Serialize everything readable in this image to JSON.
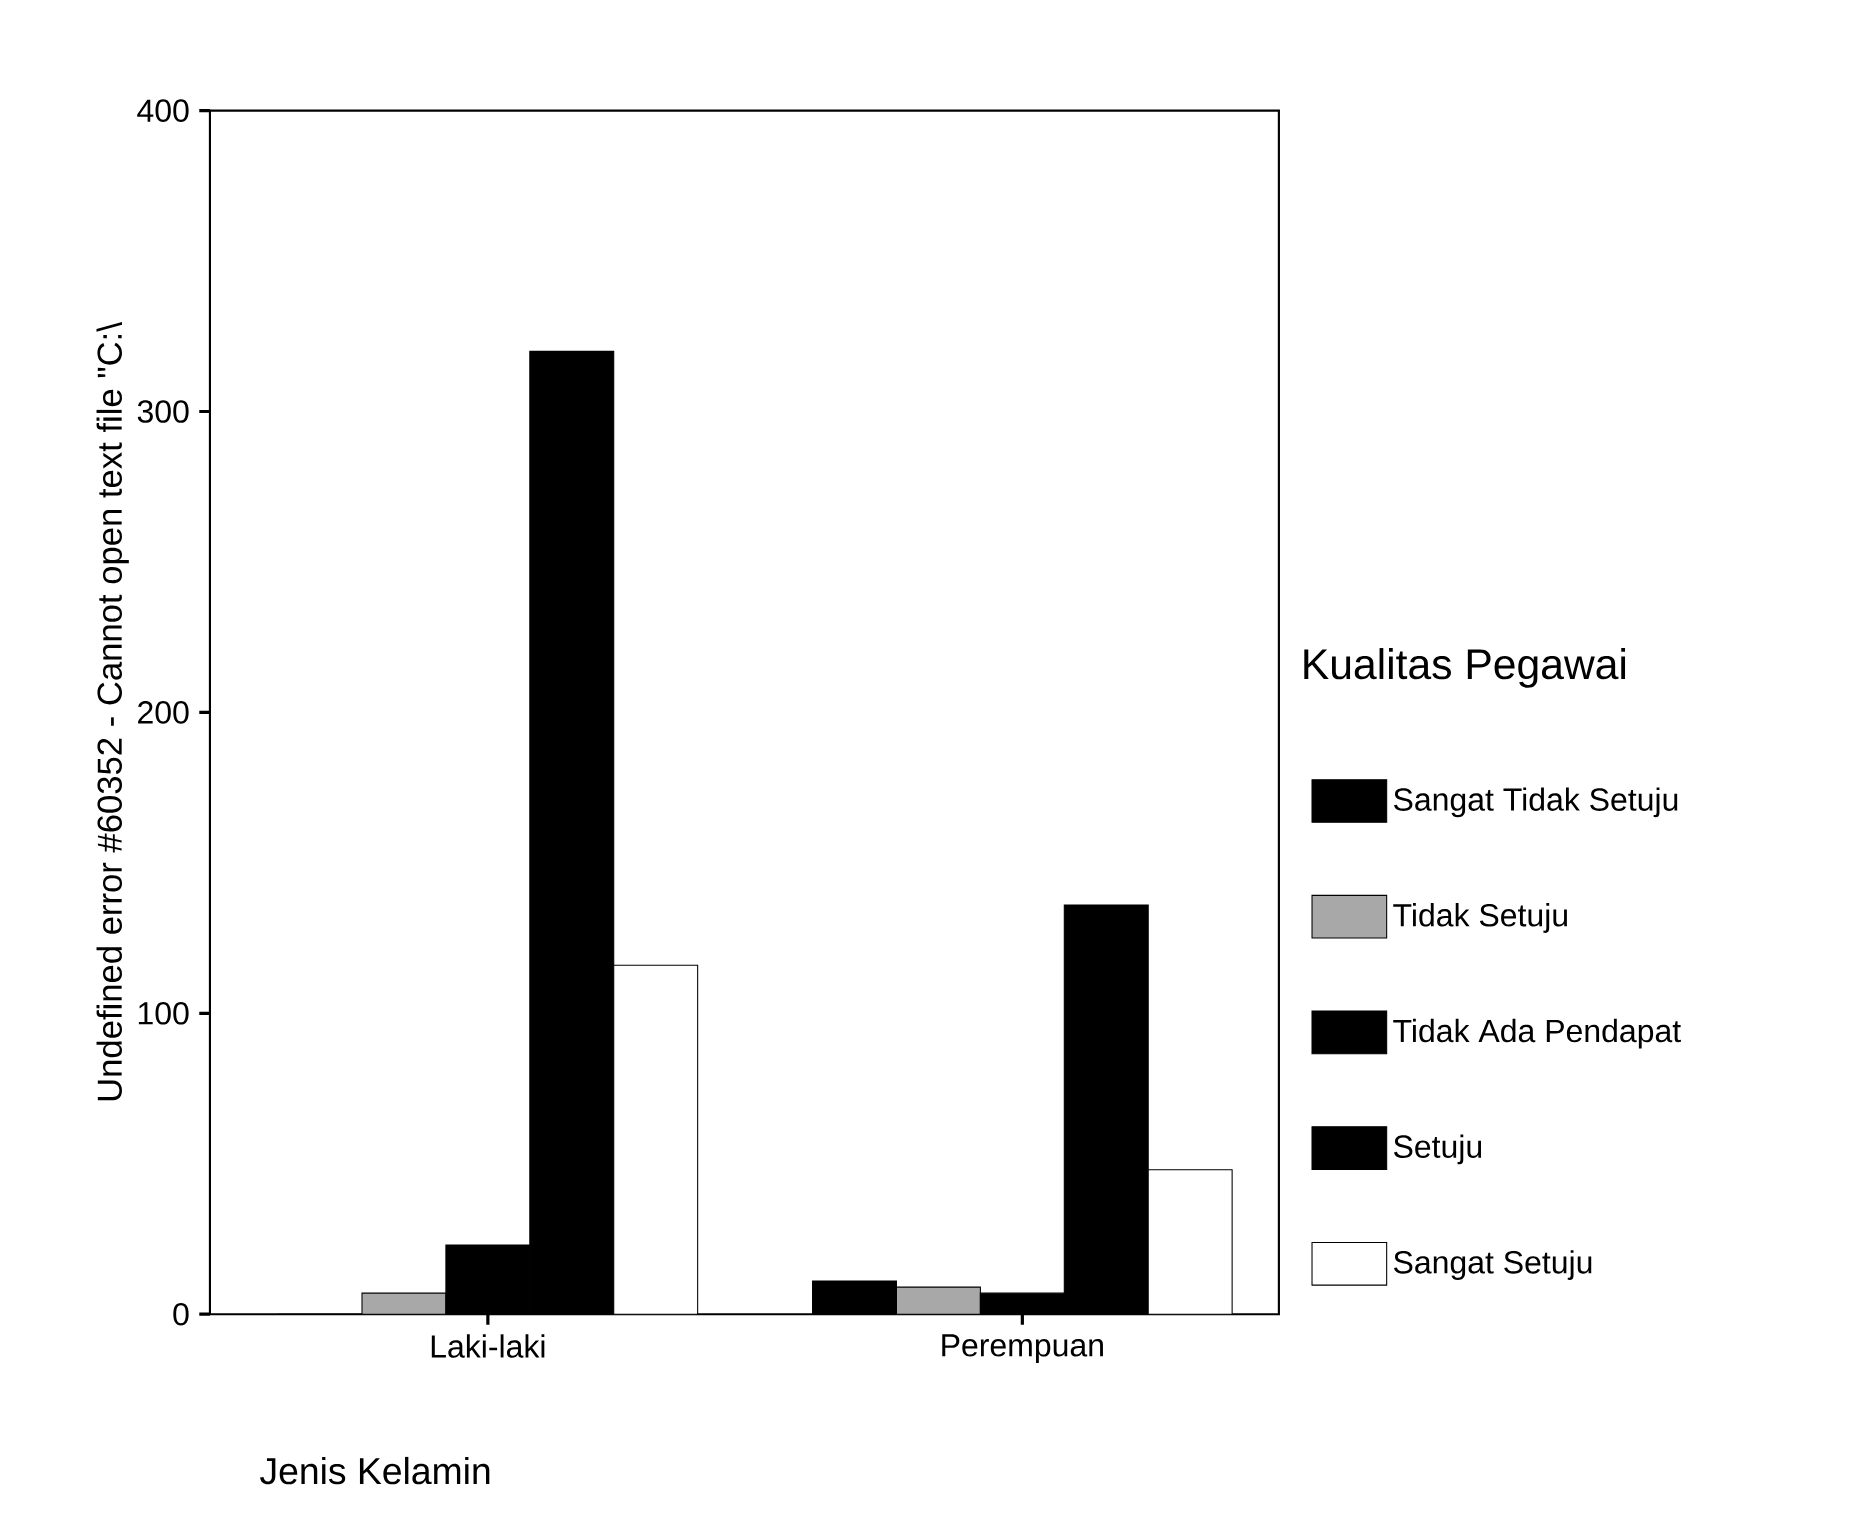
{
  "chart_data": {
    "type": "bar",
    "xlabel": "Jenis Kelamin",
    "ylabel": "Undefined error #60352 - Cannot open text file \"C:\\",
    "legend_title": "Kualitas Pegawai",
    "categories": [
      "Laki-laki",
      "Perempuan"
    ],
    "series": [
      {
        "name": "Sangat Tidak Setuju",
        "color": "#000000",
        "values": [
          0,
          11
        ]
      },
      {
        "name": "Tidak Setuju",
        "color": "#a8a8a8",
        "values": [
          7,
          9
        ]
      },
      {
        "name": "Tidak Ada Pendapat",
        "color": "#000000",
        "values": [
          23,
          7
        ]
      },
      {
        "name": "Setuju",
        "color": "#000000",
        "values": [
          320,
          136
        ]
      },
      {
        "name": "Sangat Setuju",
        "color": "#ffffff",
        "values": [
          116,
          48
        ]
      }
    ],
    "ylim": [
      0,
      400
    ],
    "yticks": [
      0,
      100,
      200,
      300,
      400
    ],
    "legend": "right"
  }
}
